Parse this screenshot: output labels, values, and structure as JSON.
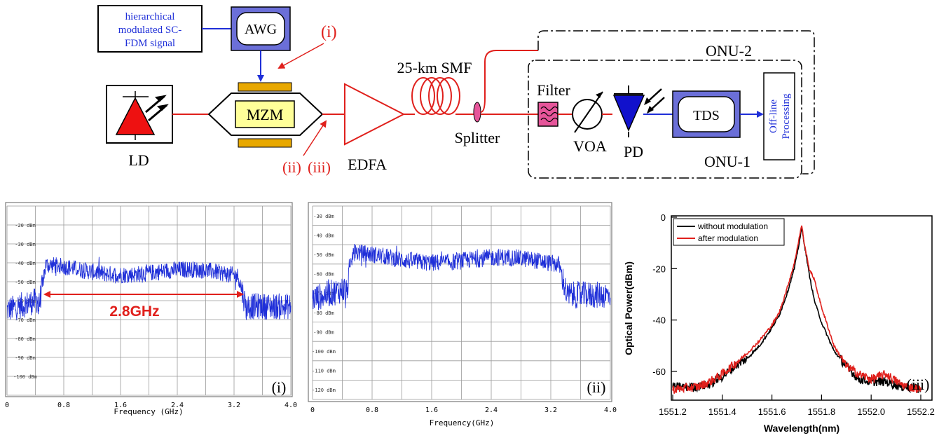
{
  "diagram": {
    "signal_box_lines": [
      "hierarchical",
      "modulated SC-",
      "FDM signal"
    ],
    "awg": "AWG",
    "mzm": "MZM",
    "ld": "LD",
    "edfa": "EDFA",
    "smf": "25-km SMF",
    "splitter": "Splitter",
    "onu2": "ONU-2",
    "onu1": "ONU-1",
    "filter": "Filter",
    "voa": "VOA",
    "pd": "PD",
    "tds": "TDS",
    "offline_lines": [
      "Off-line",
      "Processing"
    ],
    "marker_i": "(i)",
    "marker_ii": "(ii)",
    "marker_iii": "(iii)",
    "colors": {
      "optical": "#e0201c",
      "electrical": "#1f2fd8",
      "ld": "#ee1111",
      "pd": "#1111cc",
      "mzm_fill": "#ffff99",
      "electrode": "#e8a800",
      "filter": "#e6559a"
    }
  },
  "chart_data": [
    {
      "type": "line",
      "panel": "(i)",
      "xlabel": "Frequency (GHz)",
      "xlim": [
        0,
        4.0
      ],
      "ylim": [
        -110,
        -10
      ],
      "x_ticks": [
        "0",
        "0.8",
        "1.6",
        "2.4",
        "3.2",
        "4.0"
      ],
      "y_ticks": [
        "-20 dBm",
        "-30 dBm",
        "-40 dBm",
        "-50 dBm",
        "-60 dBm",
        "-70 dBm",
        "-80 dBm",
        "-90 dBm",
        "-100 dBm"
      ],
      "annotation": "2.8GHz",
      "band": [
        0.5,
        3.3
      ],
      "series": [
        {
          "color": "#1f2fd8",
          "floor": -65,
          "plateau": -43,
          "x_range": [
            0,
            4.0
          ]
        }
      ]
    },
    {
      "type": "line",
      "panel": "(ii)",
      "xlabel": "Frequency(GHz)",
      "xlim": [
        0,
        4.0
      ],
      "ylim": [
        -125,
        -25
      ],
      "x_ticks": [
        "0",
        "0.8",
        "1.6",
        "2.4",
        "3.2",
        "4.0"
      ],
      "y_ticks": [
        "-30 dBm",
        "-40 dBm",
        "-50 dBm",
        "-60 dBm",
        "-70 dBm",
        "-80 dBm",
        "-90 dBm",
        "-100 dBm",
        "-110 dBm",
        "-120 dBm"
      ],
      "band": [
        0.5,
        3.35
      ],
      "series": [
        {
          "color": "#1f2fd8",
          "floor": -73,
          "plateau": -51,
          "x_range": [
            0,
            4.0
          ]
        }
      ]
    },
    {
      "type": "line",
      "panel": "(iii)",
      "xlabel": "Wavelength(nm)",
      "ylabel": "Optical Power(dBm)",
      "xlim": [
        1551.2,
        1552.2
      ],
      "ylim": [
        -70,
        0
      ],
      "x_ticks": [
        "1551.2",
        "1551.4",
        "1551.6",
        "1551.8",
        "1552.0",
        "1552.2"
      ],
      "y_ticks": [
        "0",
        "-20",
        "-40",
        "-60"
      ],
      "series": [
        {
          "name": "without modulation",
          "color": "#000000",
          "x": [
            1551.2,
            1551.3,
            1551.35,
            1551.4,
            1551.45,
            1551.5,
            1551.55,
            1551.6,
            1551.63,
            1551.66,
            1551.69,
            1551.71,
            1551.72,
            1551.73,
            1551.75,
            1551.77,
            1551.8,
            1551.85,
            1551.9,
            1551.95,
            1552.0,
            1552.03,
            1552.06,
            1552.09,
            1552.12,
            1552.15,
            1552.2
          ],
          "y": [
            -66,
            -66,
            -65,
            -62,
            -58,
            -55,
            -50,
            -43,
            -38,
            -30,
            -20,
            -10,
            -4,
            -10,
            -22,
            -32,
            -41,
            -52,
            -58,
            -63,
            -64,
            -64,
            -64,
            -65,
            -66,
            -66,
            -67
          ]
        },
        {
          "name": "after modulation",
          "color": "#e0201c",
          "x": [
            1551.2,
            1551.3,
            1551.35,
            1551.4,
            1551.45,
            1551.5,
            1551.55,
            1551.6,
            1551.63,
            1551.66,
            1551.69,
            1551.71,
            1551.72,
            1551.73,
            1551.75,
            1551.77,
            1551.8,
            1551.85,
            1551.9,
            1551.95,
            1552.0,
            1552.03,
            1552.06,
            1552.09,
            1552.12,
            1552.15,
            1552.2
          ],
          "y": [
            -67,
            -66,
            -64,
            -61,
            -57,
            -53,
            -48,
            -42,
            -37,
            -28,
            -18,
            -8,
            -3,
            -10,
            -20,
            -24,
            -35,
            -50,
            -58,
            -61,
            -63,
            -62,
            -61,
            -63,
            -65,
            -66,
            -67
          ]
        }
      ]
    }
  ]
}
